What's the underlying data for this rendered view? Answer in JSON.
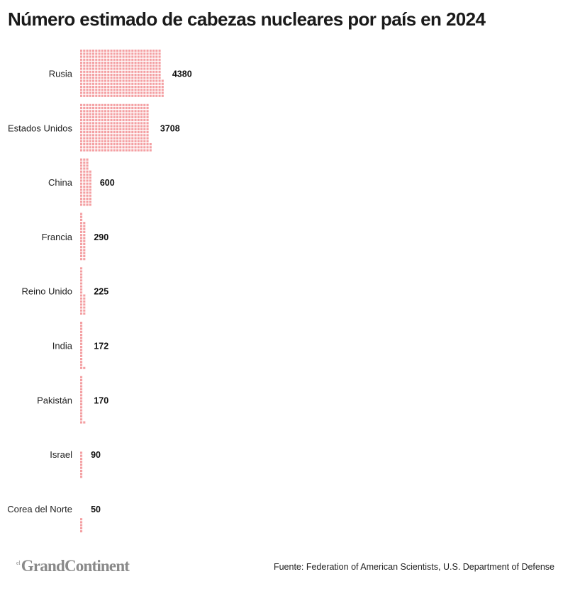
{
  "title": "Número estimado de cabezas nucleares por país en 2024",
  "source": "Fuente: Federation of American Scientists, U.S. Department of Defense",
  "logo": {
    "small": "el",
    "main": "GrandContinent"
  },
  "colors": {
    "dot": "#f4a0a3",
    "text": "#111111"
  },
  "chart_data": {
    "type": "bar",
    "style": "waffle-dot-bar",
    "orientation": "horizontal",
    "title": "Número estimado de cabezas nucleares por país en 2024",
    "categories": [
      "Rusia",
      "Estados Unidos",
      "China",
      "Francia",
      "Reino Unido",
      "India",
      "Pakistán",
      "Israel",
      "Corea del Norte"
    ],
    "values": [
      4380,
      3708,
      600,
      290,
      225,
      172,
      170,
      90,
      50
    ],
    "value_labels": [
      "4380",
      "3708",
      "600",
      "290",
      "225",
      "172",
      "170",
      "90",
      "50"
    ],
    "xlabel": "",
    "ylabel": ""
  }
}
